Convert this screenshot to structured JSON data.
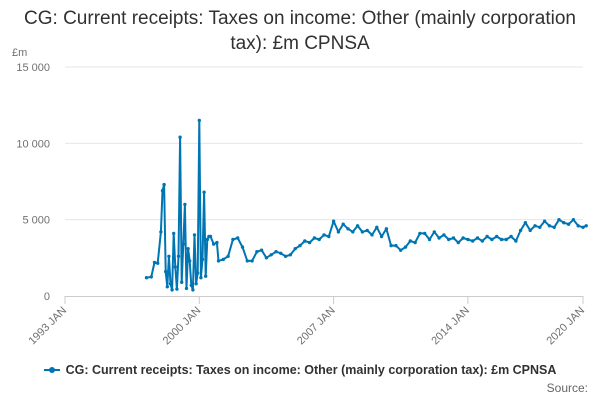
{
  "chart_data": {
    "type": "line",
    "title": "CG: Current receipts: Taxes on income: Other (mainly corporation tax): £m CPNSA",
    "y_unit_label": "£m",
    "ylim": [
      0,
      15000
    ],
    "y_ticks": [
      {
        "value": 0,
        "label": "0"
      },
      {
        "value": 5000,
        "label": "5 000"
      },
      {
        "value": 10000,
        "label": "10 000"
      },
      {
        "value": 15000,
        "label": "15 000"
      }
    ],
    "xlim": [
      "1993-01",
      "2020-01"
    ],
    "x_ticks": [
      {
        "value": "1993-01",
        "label": "1993 JAN"
      },
      {
        "value": "2000-01",
        "label": "2000 JAN"
      },
      {
        "value": "2007-01",
        "label": "2007 JAN"
      },
      {
        "value": "2014-01",
        "label": "2014 JAN"
      },
      {
        "value": "2020-01",
        "label": "2020 JAN"
      }
    ],
    "grid": "horizontal",
    "legend_position": "bottom",
    "colors": {
      "series": "#0075b3",
      "grid": "#e6e6e6",
      "axis": "#cccccc"
    },
    "series": [
      {
        "name": "CG: Current receipts: Taxes on income: Other (mainly corporation tax): £m CPNSA",
        "points": [
          [
            "1997-04",
            1200
          ],
          [
            "1997-07",
            1250
          ],
          [
            "1997-09",
            2200
          ],
          [
            "1997-11",
            2150
          ],
          [
            "1998-01",
            4200
          ],
          [
            "1998-02",
            6900
          ],
          [
            "1998-03",
            7300
          ],
          [
            "1998-04",
            1600
          ],
          [
            "1998-05",
            600
          ],
          [
            "1998-06",
            2600
          ],
          [
            "1998-07",
            800
          ],
          [
            "1998-08",
            400
          ],
          [
            "1998-09",
            4100
          ],
          [
            "1998-10",
            1900
          ],
          [
            "1998-11",
            450
          ],
          [
            "1998-12",
            2600
          ],
          [
            "1999-01",
            10400
          ],
          [
            "1999-02",
            900
          ],
          [
            "1999-03",
            3400
          ],
          [
            "1999-04",
            6000
          ],
          [
            "1999-05",
            500
          ],
          [
            "1999-06",
            3100
          ],
          [
            "1999-07",
            2300
          ],
          [
            "1999-08",
            700
          ],
          [
            "1999-09",
            400
          ],
          [
            "1999-10",
            4000
          ],
          [
            "1999-11",
            800
          ],
          [
            "1999-12",
            1500
          ],
          [
            "2000-01",
            11500
          ],
          [
            "2000-02",
            1200
          ],
          [
            "2000-03",
            2400
          ],
          [
            "2000-04",
            6800
          ],
          [
            "2000-05",
            1300
          ],
          [
            "2000-06",
            3700
          ],
          [
            "2000-07",
            3900
          ],
          [
            "2000-08",
            3900
          ],
          [
            "2000-10",
            3400
          ],
          [
            "2000-12",
            3500
          ],
          [
            "2001-01",
            2300
          ],
          [
            "2001-04",
            2400
          ],
          [
            "2001-07",
            2600
          ],
          [
            "2001-10",
            3700
          ],
          [
            "2002-01",
            3800
          ],
          [
            "2002-04",
            3200
          ],
          [
            "2002-07",
            2300
          ],
          [
            "2002-10",
            2300
          ],
          [
            "2003-01",
            2900
          ],
          [
            "2003-04",
            3000
          ],
          [
            "2003-07",
            2500
          ],
          [
            "2003-10",
            2700
          ],
          [
            "2004-01",
            2900
          ],
          [
            "2004-04",
            2800
          ],
          [
            "2004-07",
            2600
          ],
          [
            "2004-10",
            2700
          ],
          [
            "2005-01",
            3100
          ],
          [
            "2005-04",
            3300
          ],
          [
            "2005-07",
            3600
          ],
          [
            "2005-10",
            3500
          ],
          [
            "2006-01",
            3800
          ],
          [
            "2006-04",
            3700
          ],
          [
            "2006-07",
            4000
          ],
          [
            "2006-10",
            3900
          ],
          [
            "2007-01",
            4900
          ],
          [
            "2007-04",
            4200
          ],
          [
            "2007-07",
            4700
          ],
          [
            "2007-10",
            4400
          ],
          [
            "2008-01",
            4200
          ],
          [
            "2008-04",
            4600
          ],
          [
            "2008-07",
            4200
          ],
          [
            "2008-10",
            4300
          ],
          [
            "2009-01",
            4000
          ],
          [
            "2009-04",
            4500
          ],
          [
            "2009-07",
            3900
          ],
          [
            "2009-10",
            4400
          ],
          [
            "2010-01",
            3300
          ],
          [
            "2010-04",
            3300
          ],
          [
            "2010-07",
            3000
          ],
          [
            "2010-10",
            3200
          ],
          [
            "2011-01",
            3600
          ],
          [
            "2011-04",
            3500
          ],
          [
            "2011-07",
            4100
          ],
          [
            "2011-10",
            4100
          ],
          [
            "2012-01",
            3700
          ],
          [
            "2012-04",
            4200
          ],
          [
            "2012-07",
            3800
          ],
          [
            "2012-10",
            4000
          ],
          [
            "2013-01",
            3700
          ],
          [
            "2013-04",
            3800
          ],
          [
            "2013-07",
            3500
          ],
          [
            "2013-10",
            3800
          ],
          [
            "2014-01",
            3700
          ],
          [
            "2014-04",
            3600
          ],
          [
            "2014-07",
            3800
          ],
          [
            "2014-10",
            3600
          ],
          [
            "2015-01",
            3900
          ],
          [
            "2015-04",
            3700
          ],
          [
            "2015-07",
            3900
          ],
          [
            "2015-10",
            3700
          ],
          [
            "2016-01",
            3700
          ],
          [
            "2016-04",
            3900
          ],
          [
            "2016-07",
            3600
          ],
          [
            "2016-10",
            4300
          ],
          [
            "2017-01",
            4800
          ],
          [
            "2017-04",
            4300
          ],
          [
            "2017-07",
            4600
          ],
          [
            "2017-10",
            4500
          ],
          [
            "2018-01",
            4900
          ],
          [
            "2018-04",
            4600
          ],
          [
            "2018-07",
            4500
          ],
          [
            "2018-10",
            5000
          ],
          [
            "2019-01",
            4800
          ],
          [
            "2019-04",
            4700
          ],
          [
            "2019-07",
            5000
          ],
          [
            "2019-10",
            4600
          ],
          [
            "2020-01",
            4500
          ],
          [
            "2020-03",
            4600
          ]
        ]
      }
    ]
  },
  "source_label": "Source:"
}
